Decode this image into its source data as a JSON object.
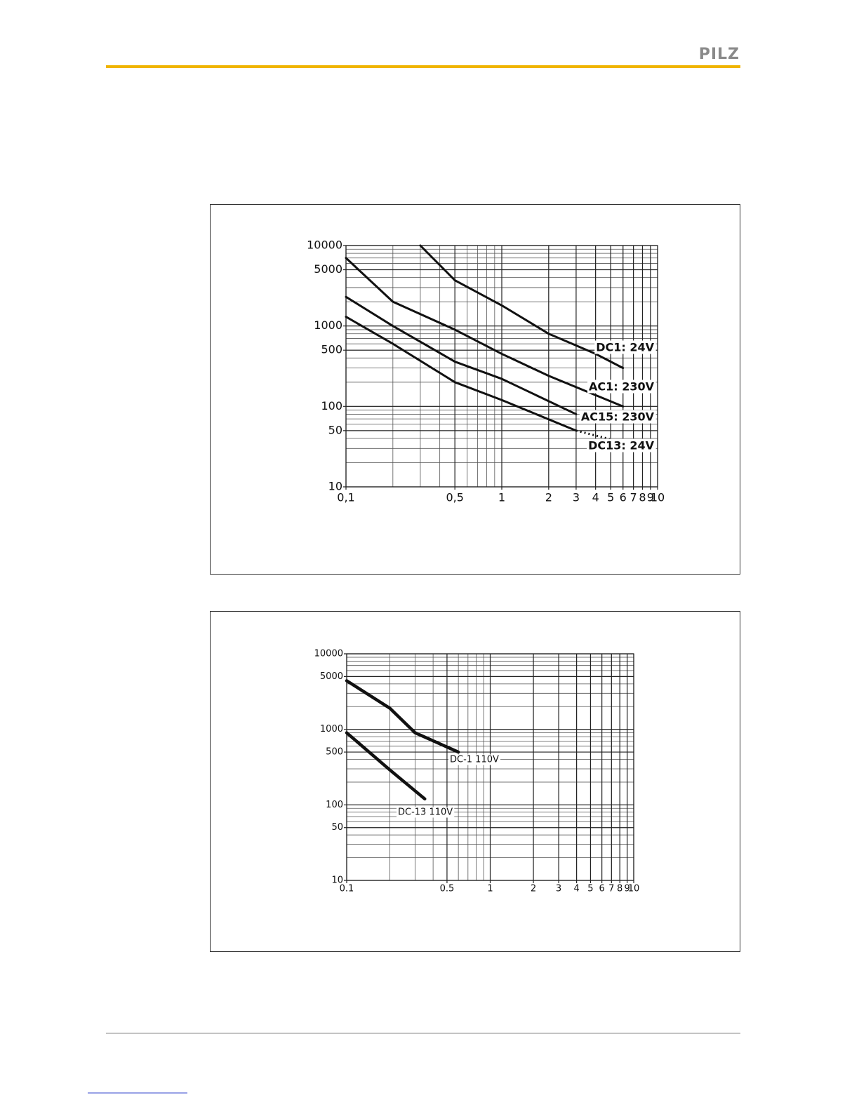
{
  "header": {
    "logo": "PILZ"
  },
  "chart_data": [
    {
      "type": "line",
      "log_x": true,
      "log_y": true,
      "grid": true,
      "xlim": [
        0.1,
        10
      ],
      "ylim": [
        10,
        10000
      ],
      "xticks": [
        {
          "value": 0.1,
          "label": "0,1"
        },
        {
          "value": 0.5,
          "label": "0,5"
        },
        1,
        2,
        3,
        4,
        5,
        6,
        7,
        8,
        9,
        10
      ],
      "yticks": [
        10,
        50,
        100,
        500,
        1000,
        5000,
        10000
      ],
      "series": [
        {
          "name": "DC1: 24V",
          "color": "#111111",
          "x": [
            0.3,
            0.5,
            1,
            2,
            4,
            6
          ],
          "values": [
            10000,
            3700,
            1800,
            800,
            450,
            300
          ]
        },
        {
          "name": "AC1: 230V",
          "color": "#111111",
          "x": [
            0.1,
            0.2,
            0.5,
            1,
            2,
            6
          ],
          "values": [
            7000,
            2000,
            900,
            450,
            240,
            100
          ]
        },
        {
          "name": "AC15: 230V",
          "color": "#111111",
          "x": [
            0.1,
            0.2,
            0.5,
            1,
            3
          ],
          "values": [
            2300,
            1000,
            360,
            220,
            80
          ]
        },
        {
          "name": "DC13: 24V",
          "color": "#111111",
          "x": [
            0.1,
            0.2,
            0.5,
            1,
            3,
            5
          ],
          "values": [
            1300,
            600,
            200,
            120,
            50,
            39
          ],
          "dashed_from_x": 3
        }
      ]
    },
    {
      "type": "line",
      "log_x": true,
      "log_y": true,
      "grid": true,
      "xlim": [
        0.1,
        10
      ],
      "ylim": [
        10,
        10000
      ],
      "xticks": [
        0.1,
        0.5,
        1,
        2,
        3,
        4,
        5,
        6,
        7,
        8,
        9,
        10
      ],
      "yticks": [
        10,
        50,
        100,
        500,
        1000,
        5000,
        10000
      ],
      "series": [
        {
          "name": "DC-1 110V",
          "color": "#111111",
          "x": [
            0.1,
            0.2,
            0.3,
            0.6
          ],
          "values": [
            4400,
            1900,
            900,
            500
          ]
        },
        {
          "name": "DC-13 110V",
          "color": "#111111",
          "x": [
            0.1,
            0.2,
            0.35
          ],
          "values": [
            900,
            290,
            120
          ]
        }
      ]
    }
  ]
}
